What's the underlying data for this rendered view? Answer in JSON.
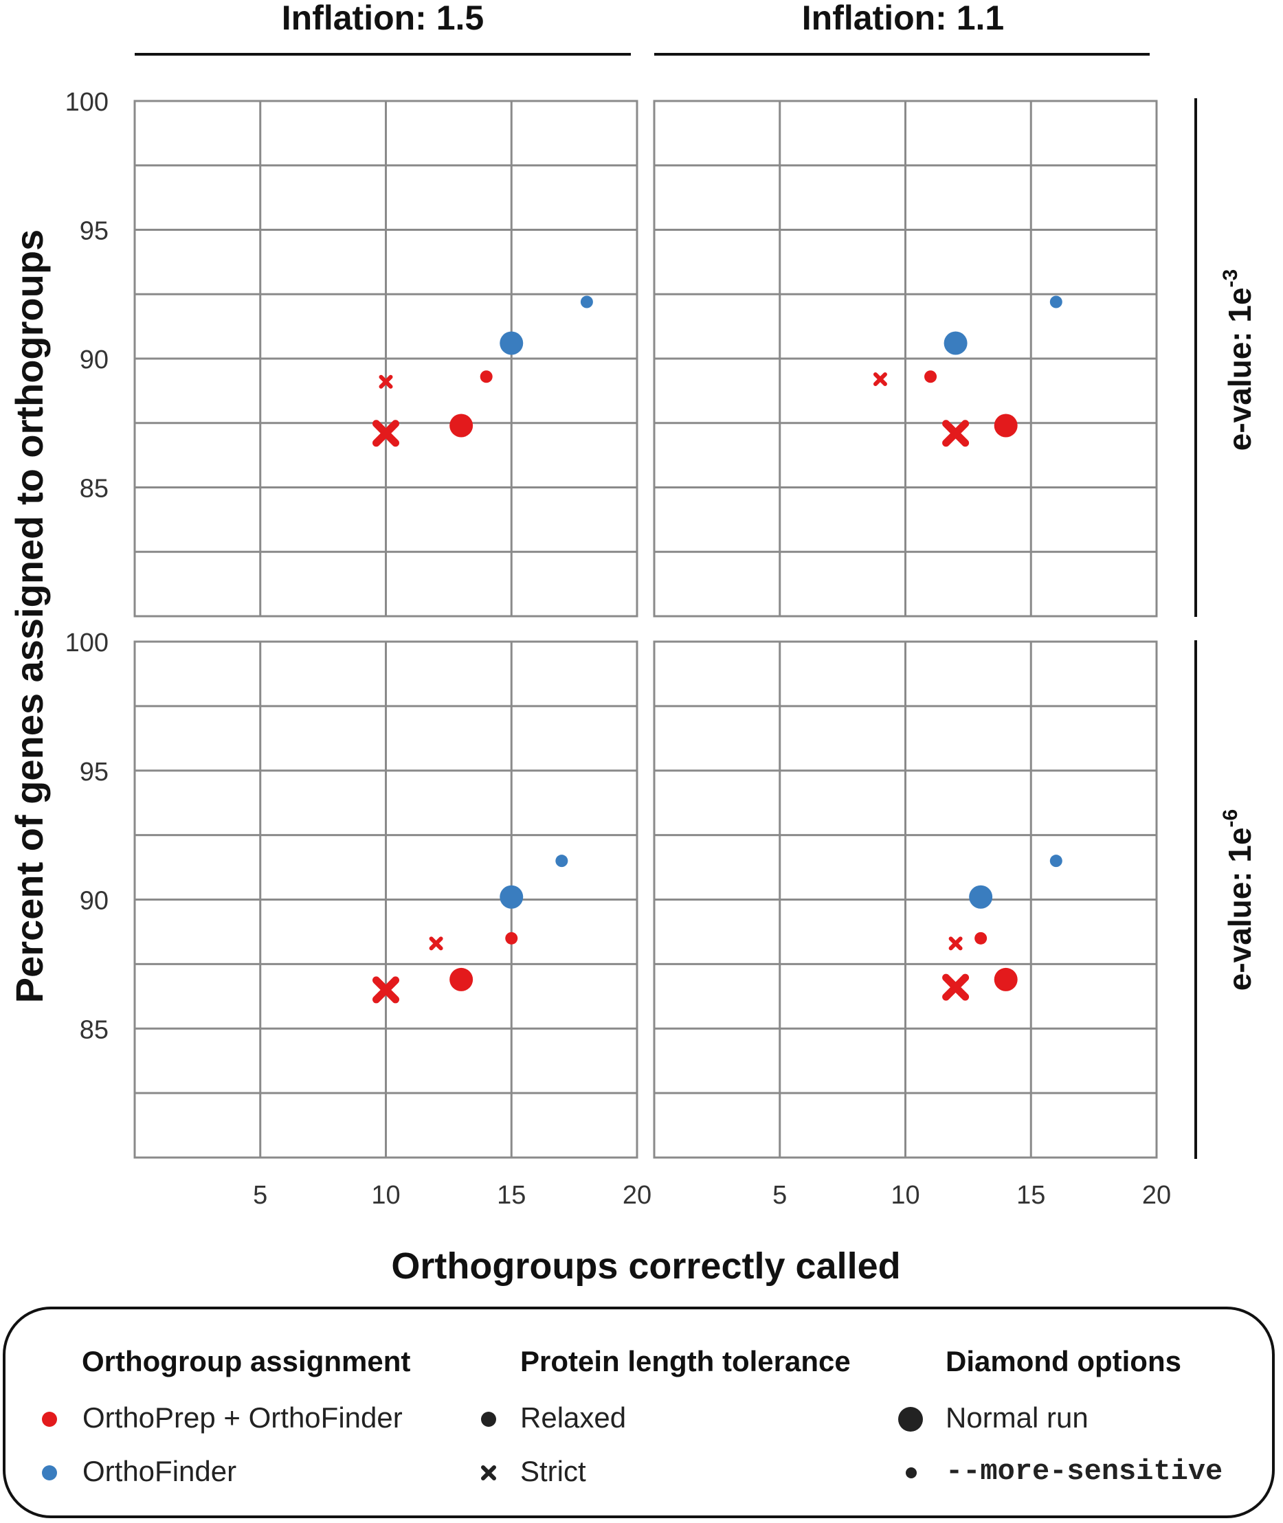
{
  "chart_data": {
    "type": "scatter",
    "xlabel": "Orthogroups correctly called",
    "ylabel": "Percent of genes assigned to orthogroups",
    "xlim": [
      0,
      20
    ],
    "ylim": [
      80,
      100
    ],
    "x_ticks": [
      "5",
      "10",
      "15",
      "20"
    ],
    "y_ticks": [
      "85",
      "90",
      "95",
      "100"
    ],
    "grid": true,
    "column_facets": [
      "Inflation: 1.5",
      "Inflation: 1.1"
    ],
    "row_facets": [
      {
        "label": "e-value: 1e",
        "exponent": "-3"
      },
      {
        "label": "e-value: 1e",
        "exponent": "-6"
      }
    ],
    "colors": {
      "OrthoPrep + OrthoFinder": "#e31a1c",
      "OrthoFinder": "#3a7dbf"
    },
    "panels": [
      {
        "row": 0,
        "col": 0,
        "points": [
          {
            "x": 18,
            "y": 92.2,
            "group": "OrthoFinder",
            "tolerance": "Relaxed",
            "diamond": "--more-sensitive"
          },
          {
            "x": 15,
            "y": 90.6,
            "group": "OrthoFinder",
            "tolerance": "Relaxed",
            "diamond": "Normal run"
          },
          {
            "x": 14,
            "y": 89.3,
            "group": "OrthoPrep + OrthoFinder",
            "tolerance": "Relaxed",
            "diamond": "--more-sensitive"
          },
          {
            "x": 10,
            "y": 89.1,
            "group": "OrthoPrep + OrthoFinder",
            "tolerance": "Strict",
            "diamond": "--more-sensitive"
          },
          {
            "x": 13,
            "y": 87.4,
            "group": "OrthoPrep + OrthoFinder",
            "tolerance": "Relaxed",
            "diamond": "Normal run"
          },
          {
            "x": 10,
            "y": 87.1,
            "group": "OrthoPrep + OrthoFinder",
            "tolerance": "Strict",
            "diamond": "Normal run"
          }
        ]
      },
      {
        "row": 0,
        "col": 1,
        "points": [
          {
            "x": 16,
            "y": 92.2,
            "group": "OrthoFinder",
            "tolerance": "Relaxed",
            "diamond": "--more-sensitive"
          },
          {
            "x": 12,
            "y": 90.6,
            "group": "OrthoFinder",
            "tolerance": "Relaxed",
            "diamond": "Normal run"
          },
          {
            "x": 11,
            "y": 89.3,
            "group": "OrthoPrep + OrthoFinder",
            "tolerance": "Relaxed",
            "diamond": "--more-sensitive"
          },
          {
            "x": 9,
            "y": 89.2,
            "group": "OrthoPrep + OrthoFinder",
            "tolerance": "Strict",
            "diamond": "--more-sensitive"
          },
          {
            "x": 14,
            "y": 87.4,
            "group": "OrthoPrep + OrthoFinder",
            "tolerance": "Relaxed",
            "diamond": "Normal run"
          },
          {
            "x": 12,
            "y": 87.1,
            "group": "OrthoPrep + OrthoFinder",
            "tolerance": "Strict",
            "diamond": "Normal run"
          }
        ]
      },
      {
        "row": 1,
        "col": 0,
        "points": [
          {
            "x": 17,
            "y": 91.5,
            "group": "OrthoFinder",
            "tolerance": "Relaxed",
            "diamond": "--more-sensitive"
          },
          {
            "x": 15,
            "y": 90.1,
            "group": "OrthoFinder",
            "tolerance": "Relaxed",
            "diamond": "Normal run"
          },
          {
            "x": 15,
            "y": 88.5,
            "group": "OrthoPrep + OrthoFinder",
            "tolerance": "Relaxed",
            "diamond": "--more-sensitive"
          },
          {
            "x": 12,
            "y": 88.3,
            "group": "OrthoPrep + OrthoFinder",
            "tolerance": "Strict",
            "diamond": "--more-sensitive"
          },
          {
            "x": 13,
            "y": 86.9,
            "group": "OrthoPrep + OrthoFinder",
            "tolerance": "Relaxed",
            "diamond": "Normal run"
          },
          {
            "x": 10,
            "y": 86.5,
            "group": "OrthoPrep + OrthoFinder",
            "tolerance": "Strict",
            "diamond": "Normal run"
          }
        ]
      },
      {
        "row": 1,
        "col": 1,
        "points": [
          {
            "x": 16,
            "y": 91.5,
            "group": "OrthoFinder",
            "tolerance": "Relaxed",
            "diamond": "--more-sensitive"
          },
          {
            "x": 13,
            "y": 90.1,
            "group": "OrthoFinder",
            "tolerance": "Relaxed",
            "diamond": "Normal run"
          },
          {
            "x": 13,
            "y": 88.5,
            "group": "OrthoPrep + OrthoFinder",
            "tolerance": "Relaxed",
            "diamond": "--more-sensitive"
          },
          {
            "x": 12,
            "y": 88.3,
            "group": "OrthoPrep + OrthoFinder",
            "tolerance": "Strict",
            "diamond": "--more-sensitive"
          },
          {
            "x": 14,
            "y": 86.9,
            "group": "OrthoPrep + OrthoFinder",
            "tolerance": "Relaxed",
            "diamond": "Normal run"
          },
          {
            "x": 12,
            "y": 86.6,
            "group": "OrthoPrep + OrthoFinder",
            "tolerance": "Strict",
            "diamond": "Normal run"
          }
        ]
      }
    ]
  },
  "legend": {
    "assignment": {
      "title": "Orthogroup assignment",
      "items": [
        {
          "label": "OrthoPrep + OrthoFinder",
          "color": "#e31a1c"
        },
        {
          "label": "OrthoFinder",
          "color": "#3a7dbf"
        }
      ]
    },
    "tolerance": {
      "title": "Protein length tolerance",
      "items": [
        {
          "label": "Relaxed",
          "symbol": "circle"
        },
        {
          "label": "Strict",
          "symbol": "cross"
        }
      ]
    },
    "diamond": {
      "title": "Diamond options",
      "items": [
        {
          "label": "Normal run",
          "symbol": "large"
        },
        {
          "label": "--more-sensitive",
          "symbol": "small"
        }
      ]
    }
  }
}
